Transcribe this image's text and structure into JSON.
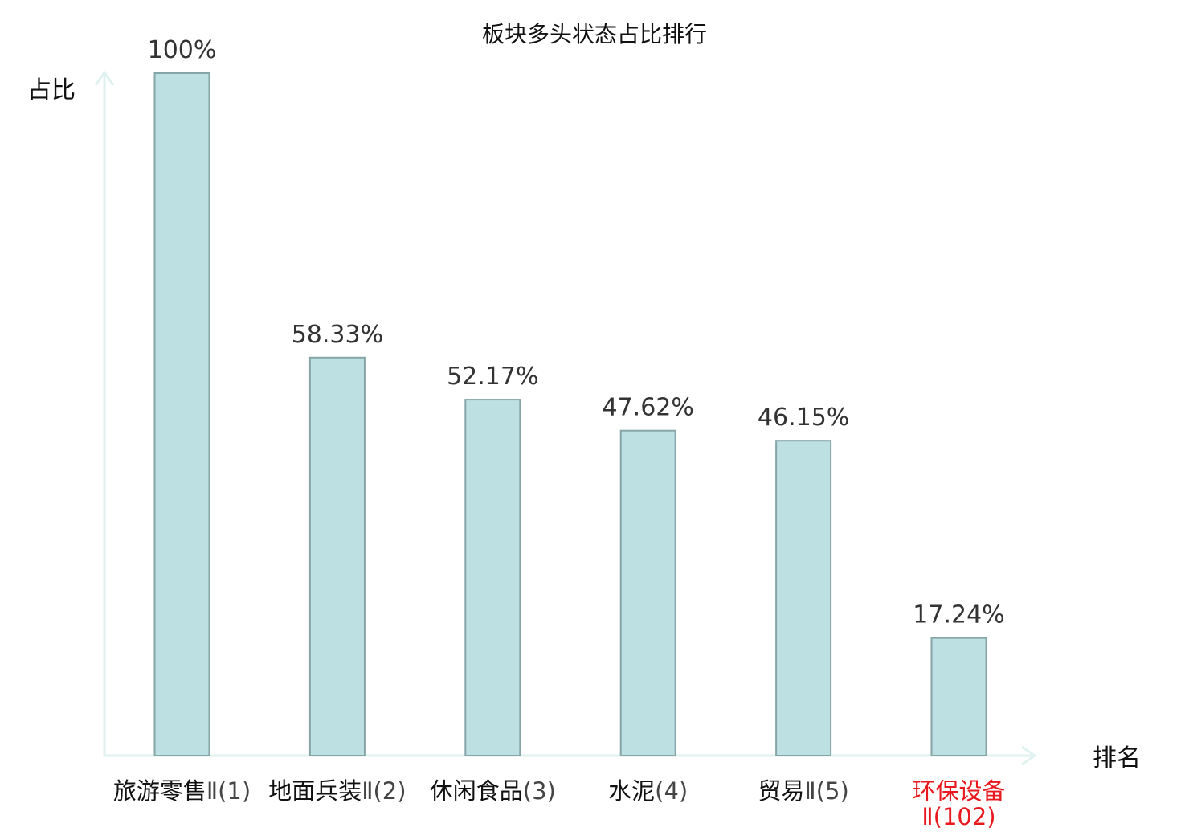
{
  "chart_data": {
    "type": "bar",
    "title": "板块多头状态占比排行",
    "ylabel": "占比",
    "xlabel": "排名",
    "ylim": [
      0,
      100
    ],
    "grid": false,
    "categories": [
      {
        "name": "旅游零售",
        "suffix": "Ⅱ(1)",
        "highlight": false
      },
      {
        "name": "地面兵装",
        "suffix": "Ⅱ(2)",
        "highlight": false
      },
      {
        "name": "休闲食品",
        "suffix": "(3)",
        "highlight": false
      },
      {
        "name": "水泥",
        "suffix": "(4)",
        "highlight": false
      },
      {
        "name": "贸易",
        "suffix": "Ⅱ(5)",
        "highlight": false
      },
      {
        "name": "环保设备",
        "suffix": "Ⅱ(102)",
        "highlight": true
      }
    ],
    "values": [
      100,
      58.33,
      52.17,
      47.62,
      46.15,
      17.24
    ],
    "value_labels": [
      "100%",
      "58.33%",
      "52.17%",
      "47.62%",
      "46.15%",
      "17.24%"
    ],
    "colors": {
      "bar_fill": "#bde0e3",
      "bar_stroke": "#86a5a8",
      "axis": "#e0f2ef",
      "highlight": "#e8191e",
      "name_text": "#111111",
      "suffix_text": "#444444"
    }
  }
}
